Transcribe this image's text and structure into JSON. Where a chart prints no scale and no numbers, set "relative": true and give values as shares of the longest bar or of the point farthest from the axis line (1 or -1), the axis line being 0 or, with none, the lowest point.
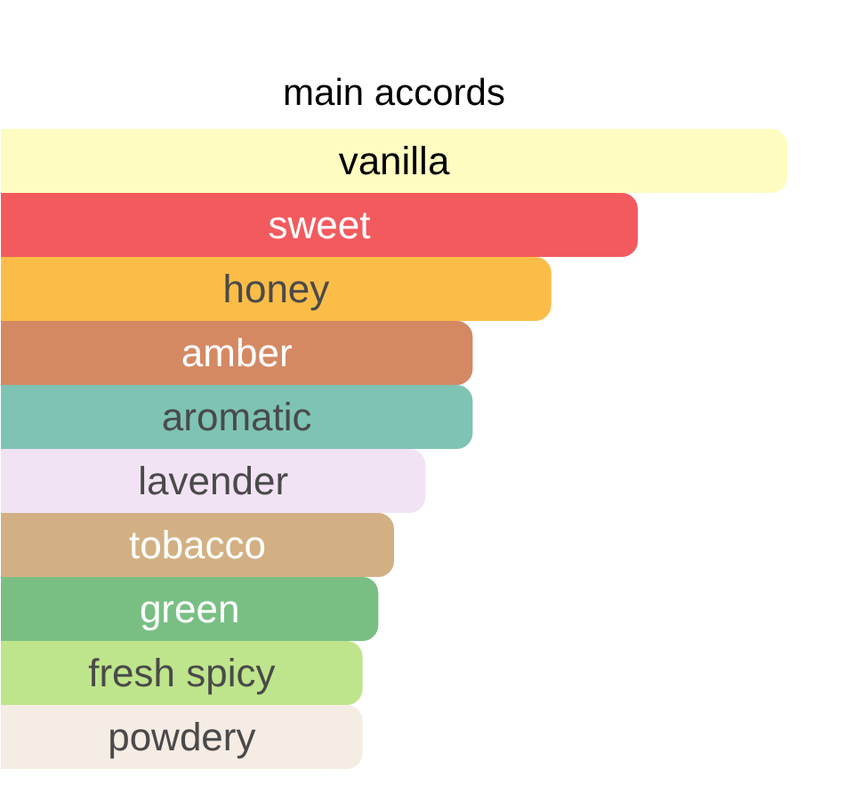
{
  "chart_data": {
    "type": "bar",
    "orientation": "horizontal",
    "relative": true,
    "title": "main accords",
    "categories": [
      "vanilla",
      "sweet",
      "honey",
      "amber",
      "aromatic",
      "lavender",
      "tobacco",
      "green",
      "fresh spicy",
      "powdery"
    ],
    "values": [
      1,
      0.81,
      0.7,
      0.6,
      0.6,
      0.54,
      0.5,
      0.48,
      0.46,
      0.46
    ],
    "colors": [
      "#fefcc0",
      "#f25a5e",
      "#fcbd48",
      "#d48963",
      "#7ec3b3",
      "#f1e3f3",
      "#d2b083",
      "#79bf84",
      "#bee58b",
      "#f5ece3"
    ]
  }
}
